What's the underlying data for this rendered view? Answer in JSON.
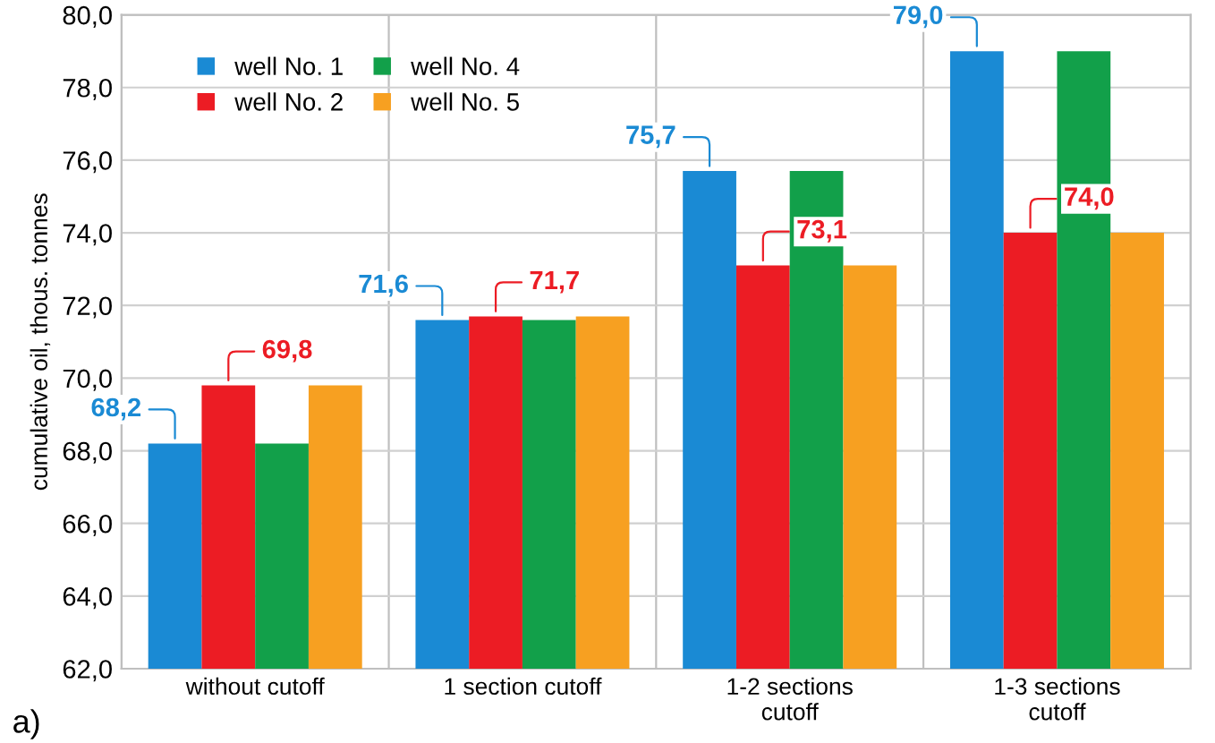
{
  "chart_data": {
    "type": "bar",
    "ylabel": "cumulative oil, thous. tonnes",
    "categories": [
      "without cutoff",
      "1 section cutoff",
      "1-2 sections cutoff",
      "1-3 sections cutoff"
    ],
    "series": [
      {
        "name": "well No. 1",
        "color": "#1a8ad4",
        "values": [
          68.2,
          71.6,
          75.7,
          79.0
        ],
        "value_labels": [
          "68,2",
          "71,6",
          "75,7",
          "79,0"
        ]
      },
      {
        "name": "well No. 2",
        "color": "#ec1c24",
        "values": [
          69.8,
          71.7,
          73.1,
          74.0
        ],
        "value_labels": [
          "69,8",
          "71,7",
          "73,1",
          "74,0"
        ]
      },
      {
        "name": "well No. 4",
        "color": "#12a04a",
        "values": [
          68.2,
          71.6,
          75.7,
          79.0
        ]
      },
      {
        "name": "well No. 5",
        "color": "#f7a021",
        "values": [
          69.8,
          71.7,
          73.1,
          74.0
        ]
      }
    ],
    "ylim": [
      62,
      80
    ],
    "yticks": [
      {
        "value": 62,
        "label": "62,0"
      },
      {
        "value": 64,
        "label": "64,0"
      },
      {
        "value": 66,
        "label": "66,0"
      },
      {
        "value": 68,
        "label": "68,0"
      },
      {
        "value": 70,
        "label": "70,0"
      },
      {
        "value": 72,
        "label": "72,0"
      },
      {
        "value": 74,
        "label": "74,0"
      },
      {
        "value": 76,
        "label": "76,0"
      },
      {
        "value": 78,
        "label": "78,0"
      },
      {
        "value": 80,
        "label": "80,0"
      }
    ],
    "grid": "y",
    "legend": "top left",
    "annotations": [
      "a)"
    ]
  }
}
